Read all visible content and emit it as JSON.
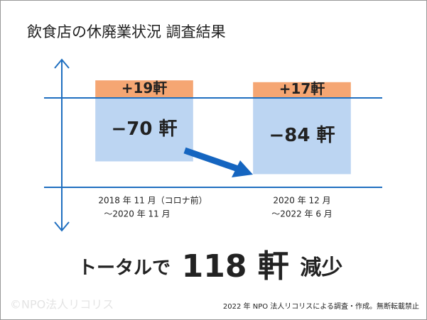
{
  "chart_data": {
    "type": "bar",
    "title": "飲食店の休廃業状況 調査結果",
    "categories": [
      [
        "2018 年 11 月（コロナ前）",
        "～2020 年 11 月"
      ],
      [
        "2020 年 12 月",
        "～2022 年 6 月"
      ]
    ],
    "series": [
      {
        "color": "#f5a673",
        "values": [
          19,
          17
        ],
        "value_labels": [
          "+19軒",
          "+17軒"
        ]
      },
      {
        "color": "#bcd5f2",
        "values": [
          -70,
          -84
        ],
        "value_labels": [
          "−70 軒",
          "−84 軒"
        ]
      }
    ],
    "ylim": [
      -146,
      41
    ],
    "summary": [
      "トータルで",
      "118 軒",
      "減少"
    ],
    "footnote": "2022 年 NPO 法人リコリスによる調査・作成。無断転載禁止",
    "watermark": "©NPO法人リコリス"
  }
}
